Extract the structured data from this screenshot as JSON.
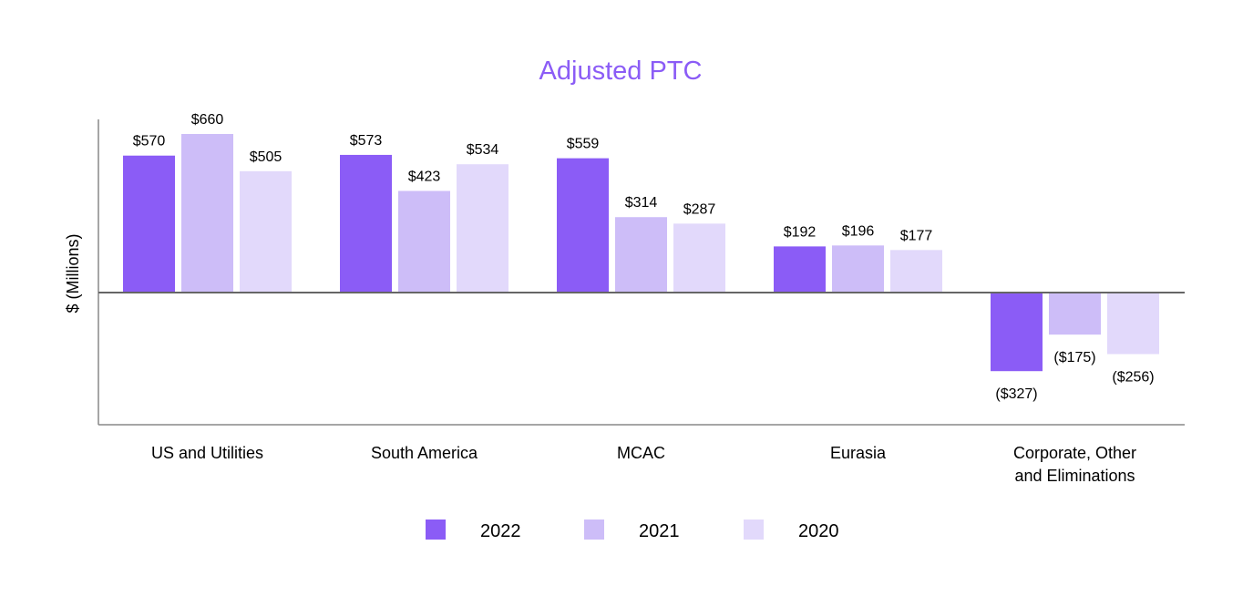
{
  "chart_data": {
    "type": "bar",
    "title": "Adjusted PTC",
    "xlabel": "",
    "ylabel": "$ (Millions)",
    "categories": [
      [
        "US and Utilities"
      ],
      [
        "South America"
      ],
      [
        "MCAC"
      ],
      [
        "Eurasia"
      ],
      [
        "Corporate, Other",
        "and Eliminations"
      ]
    ],
    "series": [
      {
        "name": "2022",
        "values": [
          570,
          573,
          559,
          192,
          -327
        ],
        "labels": [
          "$570",
          "$573",
          "$559",
          "$192",
          "($327)"
        ]
      },
      {
        "name": "2021",
        "values": [
          660,
          423,
          314,
          196,
          -175
        ],
        "labels": [
          "$660",
          "$423",
          "$314",
          "$196",
          "($175)"
        ]
      },
      {
        "name": "2020",
        "values": [
          505,
          534,
          287,
          177,
          -256
        ],
        "labels": [
          "$505",
          "$534",
          "$287",
          "$177",
          "($256)"
        ]
      }
    ],
    "ylim": [
      -550,
      720
    ],
    "grid": false,
    "legend_position": "bottom",
    "colors": {
      "2022": "#8B5CF6",
      "2021": "#CDBDF8",
      "2020": "#E2D9FB",
      "title": "#8B5CF6",
      "axis": "#888888"
    }
  }
}
